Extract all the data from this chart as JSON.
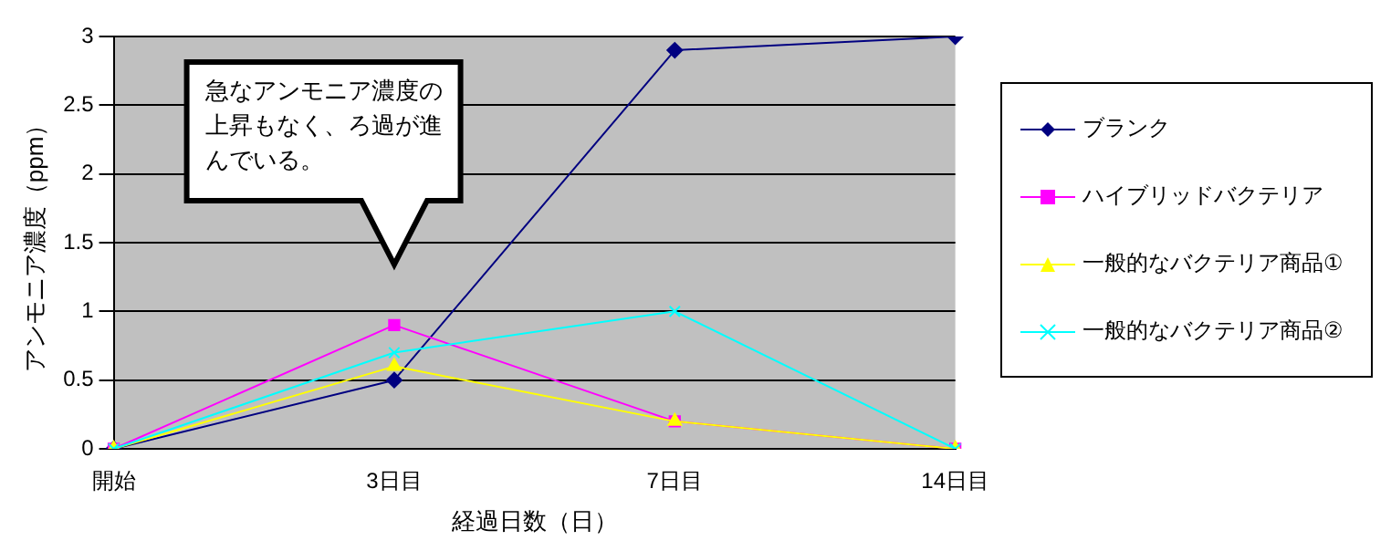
{
  "chart_data": {
    "type": "line",
    "xlabel": "経過日数（日）",
    "ylabel": "アンモニア濃度（ppm）",
    "categories": [
      "開始",
      "3日目",
      "7日目",
      "14日目"
    ],
    "series": [
      {
        "name": "ブランク",
        "color": "#000080",
        "marker": "diamond",
        "values": [
          0,
          0.5,
          2.9,
          3.0
        ]
      },
      {
        "name": "ハイブリッドバクテリア",
        "color": "#ff00ff",
        "marker": "square",
        "values": [
          0,
          0.9,
          0.2,
          0
        ]
      },
      {
        "name": "一般的なバクテリア商品①",
        "color": "#ffff00",
        "marker": "triangle",
        "values": [
          0,
          0.6,
          0.2,
          0
        ]
      },
      {
        "name": "一般的なバクテリア商品②",
        "color": "#00ffff",
        "marker": "cross",
        "values": [
          0,
          0.7,
          1.0,
          0
        ]
      }
    ],
    "ylim": [
      0,
      3
    ],
    "yticks": [
      0,
      0.5,
      1,
      1.5,
      2,
      2.5,
      3
    ],
    "grid": "y",
    "legend": "right",
    "annotations": [
      "急なアンモニア濃度の上昇もなく、ろ過が進んでいる。"
    ]
  }
}
